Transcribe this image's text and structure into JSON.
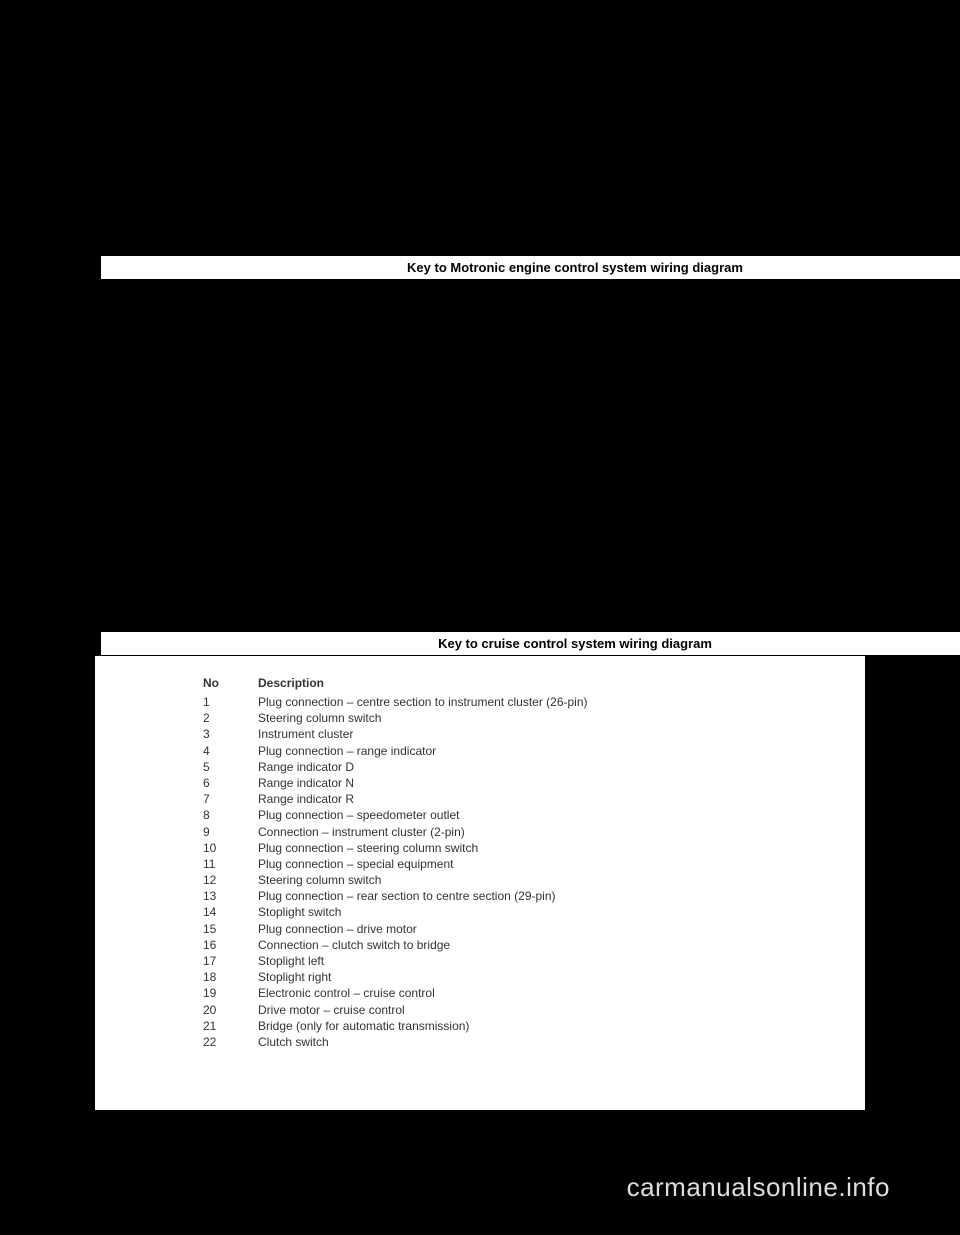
{
  "header1": {
    "title": "Key to Motronic engine control system wiring diagram"
  },
  "header2": {
    "title": "Key to cruise control system wiring diagram"
  },
  "table": {
    "columns": {
      "no": "No",
      "description": "Description"
    },
    "rows": [
      {
        "no": "1",
        "desc": "Plug connection – centre section to instrument cluster (26-pin)"
      },
      {
        "no": "2",
        "desc": "Steering column switch"
      },
      {
        "no": "3",
        "desc": "Instrument cluster"
      },
      {
        "no": "4",
        "desc": "Plug connection – range indicator"
      },
      {
        "no": "5",
        "desc": "Range indicator D"
      },
      {
        "no": "6",
        "desc": "Range indicator N"
      },
      {
        "no": "7",
        "desc": "Range indicator R"
      },
      {
        "no": "8",
        "desc": "Plug connection – speedometer outlet"
      },
      {
        "no": "9",
        "desc": "Connection – instrument cluster (2-pin)"
      },
      {
        "no": "10",
        "desc": "Plug connection – steering column switch"
      },
      {
        "no": "11",
        "desc": "Plug connection – special equipment"
      },
      {
        "no": "12",
        "desc": "Steering column switch"
      },
      {
        "no": "13",
        "desc": "Plug connection – rear section to centre section (29-pin)"
      },
      {
        "no": "14",
        "desc": "Stoplight switch"
      },
      {
        "no": "15",
        "desc": "Plug connection – drive motor"
      },
      {
        "no": "16",
        "desc": "Connection – clutch switch to bridge"
      },
      {
        "no": "17",
        "desc": "Stoplight left"
      },
      {
        "no": "18",
        "desc": "Stoplight right"
      },
      {
        "no": "19",
        "desc": "Electronic control – cruise control"
      },
      {
        "no": "20",
        "desc": "Drive motor – cruise control"
      },
      {
        "no": "21",
        "desc": "Bridge (only for automatic transmission)"
      },
      {
        "no": "22",
        "desc": "Clutch switch"
      }
    ]
  },
  "watermark": "carmanualsonline.info",
  "colors": {
    "page_bg": "#000000",
    "panel_bg": "#ffffff",
    "text": "#333333",
    "watermark": "#dedede"
  }
}
